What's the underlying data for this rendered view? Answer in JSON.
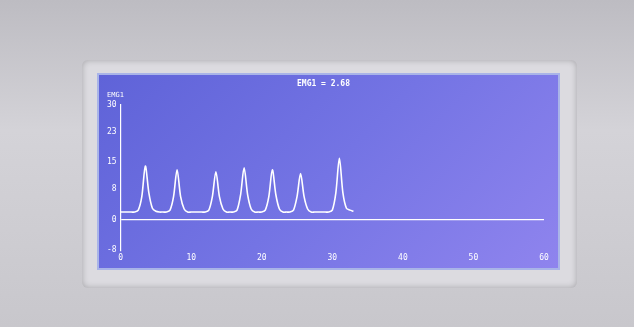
{
  "chart_data": {
    "type": "line",
    "title": "EMG1 = 2.68",
    "y_label": "EMG1",
    "x": [
      0,
      0.5,
      1,
      1.5,
      2,
      2.5,
      3,
      3.5,
      4,
      4.5,
      5,
      5.5,
      6,
      6.5,
      7,
      7.5,
      8,
      8.5,
      9,
      9.5,
      10,
      10.5,
      11,
      11.5,
      12,
      12.5,
      13,
      13.5,
      14,
      14.5,
      15,
      15.5,
      16,
      16.5,
      17,
      17.5,
      18,
      18.5,
      19,
      19.5,
      20,
      20.5,
      21,
      21.5,
      22,
      22.5,
      23,
      23.5,
      24,
      24.5,
      25,
      25.5,
      26,
      26.5,
      27,
      27.5,
      28,
      28.5,
      29,
      29.5,
      30,
      30.5,
      31,
      31.5,
      32,
      32.5,
      33
    ],
    "values": [
      2,
      2,
      2,
      2,
      2,
      2.5,
      6,
      14,
      7,
      3,
      2.2,
      2,
      2,
      2,
      2.5,
      6,
      13,
      6,
      2.8,
      2,
      2,
      2,
      2,
      2,
      2,
      2.5,
      6,
      12.5,
      6,
      2.8,
      2,
      2,
      2,
      2.5,
      6.5,
      13.5,
      6.5,
      2.8,
      2,
      2,
      2,
      2.5,
      6,
      13,
      6.5,
      2.8,
      2,
      2,
      2,
      2.5,
      6,
      12,
      6,
      2.8,
      2,
      2,
      2,
      2,
      2,
      2,
      2.5,
      7,
      16,
      7,
      3,
      2.5,
      2.2
    ],
    "color": "#ffffff",
    "xlim": [
      0,
      60
    ],
    "xticks": [
      0,
      10,
      20,
      30,
      40,
      50,
      60
    ],
    "ylim": [
      -8,
      30
    ],
    "yticks": [
      -8,
      0,
      8,
      15,
      23,
      30
    ]
  }
}
